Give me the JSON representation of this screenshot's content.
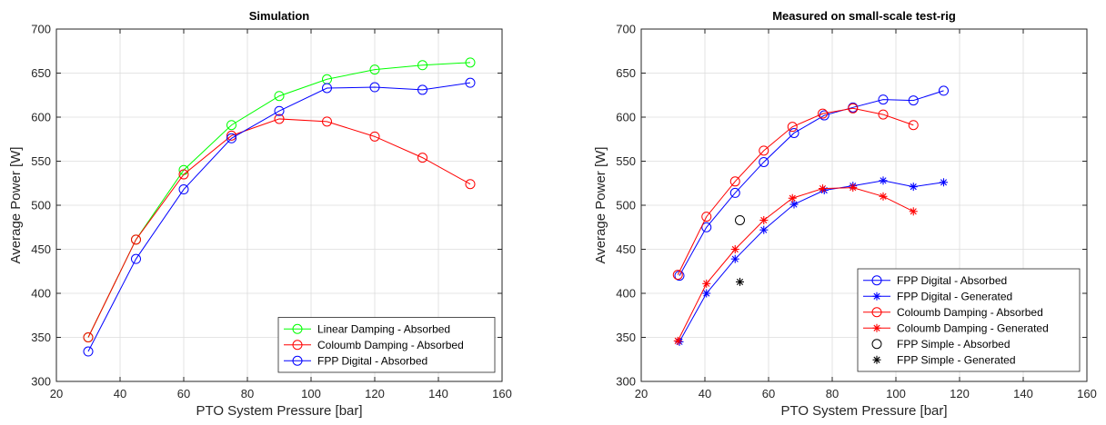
{
  "chart_data": [
    {
      "type": "line",
      "title": "Simulation",
      "xlabel": "PTO System Pressure [bar]",
      "ylabel": "Average Power [W]",
      "xlim": [
        20,
        160
      ],
      "ylim": [
        300,
        700
      ],
      "xticks": [
        20,
        40,
        60,
        80,
        100,
        120,
        140,
        160
      ],
      "yticks": [
        300,
        350,
        400,
        450,
        500,
        550,
        600,
        650,
        700
      ],
      "grid": true,
      "legend_position": "bottom-right",
      "series": [
        {
          "name": "Linear Damping - Absorbed",
          "color": "#00ff00",
          "marker": "circle",
          "line": true,
          "x": [
            30,
            45,
            60,
            75,
            90,
            105,
            120,
            135,
            150
          ],
          "y": [
            350,
            461,
            540,
            591,
            624,
            643,
            654,
            659,
            662
          ]
        },
        {
          "name": "Coloumb Damping - Absorbed",
          "color": "#ff0000",
          "marker": "circle",
          "line": true,
          "x": [
            30,
            45,
            60,
            75,
            90,
            105,
            120,
            135,
            150
          ],
          "y": [
            350,
            461,
            535,
            579,
            598,
            595,
            578,
            554,
            524
          ]
        },
        {
          "name": "FPP Digital - Absorbed",
          "color": "#0000ff",
          "marker": "circle",
          "line": true,
          "x": [
            30,
            45,
            60,
            75,
            90,
            105,
            120,
            135,
            150
          ],
          "y": [
            334,
            439,
            518,
            576,
            607,
            633,
            634,
            631,
            639
          ]
        }
      ]
    },
    {
      "type": "line",
      "title": "Measured on small-scale test-rig",
      "xlabel": "PTO System Pressure [bar]",
      "ylabel": "Average Power [W]",
      "xlim": [
        20,
        160
      ],
      "ylim": [
        300,
        700
      ],
      "xticks": [
        20,
        40,
        60,
        80,
        100,
        120,
        140,
        160
      ],
      "yticks": [
        300,
        350,
        400,
        450,
        500,
        550,
        600,
        650,
        700
      ],
      "grid": true,
      "legend_position": "bottom-right",
      "series": [
        {
          "name": "FPP Digital - Absorbed",
          "color": "#0000ff",
          "marker": "circle",
          "line": true,
          "x": [
            32,
            40.5,
            49.5,
            58.5,
            68,
            77.5,
            86.5,
            96,
            105.5,
            115
          ],
          "y": [
            420,
            475,
            514,
            549,
            582,
            602,
            611,
            620,
            619,
            630
          ]
        },
        {
          "name": "FPP Digital - Generated",
          "color": "#0000ff",
          "marker": "star",
          "line": true,
          "x": [
            32,
            40.5,
            49.5,
            58.5,
            68,
            77.5,
            86.5,
            96,
            105.5,
            115
          ],
          "y": [
            345,
            400,
            439,
            472,
            501,
            517,
            522,
            528,
            521,
            526
          ]
        },
        {
          "name": "Coloumb Damping - Absorbed",
          "color": "#ff0000",
          "marker": "circle",
          "line": true,
          "x": [
            31.5,
            40.5,
            49.5,
            58.5,
            67.5,
            77,
            86.5,
            96,
            105.5
          ],
          "y": [
            421,
            487,
            527,
            562,
            589,
            604,
            610,
            603,
            591
          ]
        },
        {
          "name": "Coloumb Damping - Generated",
          "color": "#ff0000",
          "marker": "star",
          "line": true,
          "x": [
            31.5,
            40.5,
            49.5,
            58.5,
            67.5,
            77,
            86.5,
            96,
            105.5
          ],
          "y": [
            346,
            411,
            450,
            483,
            508,
            519,
            520,
            510,
            493
          ]
        },
        {
          "name": "FPP Simple - Absorbed",
          "color": "#000000",
          "marker": "circle",
          "line": false,
          "x": [
            51
          ],
          "y": [
            483
          ]
        },
        {
          "name": "FPP Simple - Generated",
          "color": "#000000",
          "marker": "star",
          "line": false,
          "x": [
            51
          ],
          "y": [
            413
          ]
        }
      ]
    }
  ]
}
